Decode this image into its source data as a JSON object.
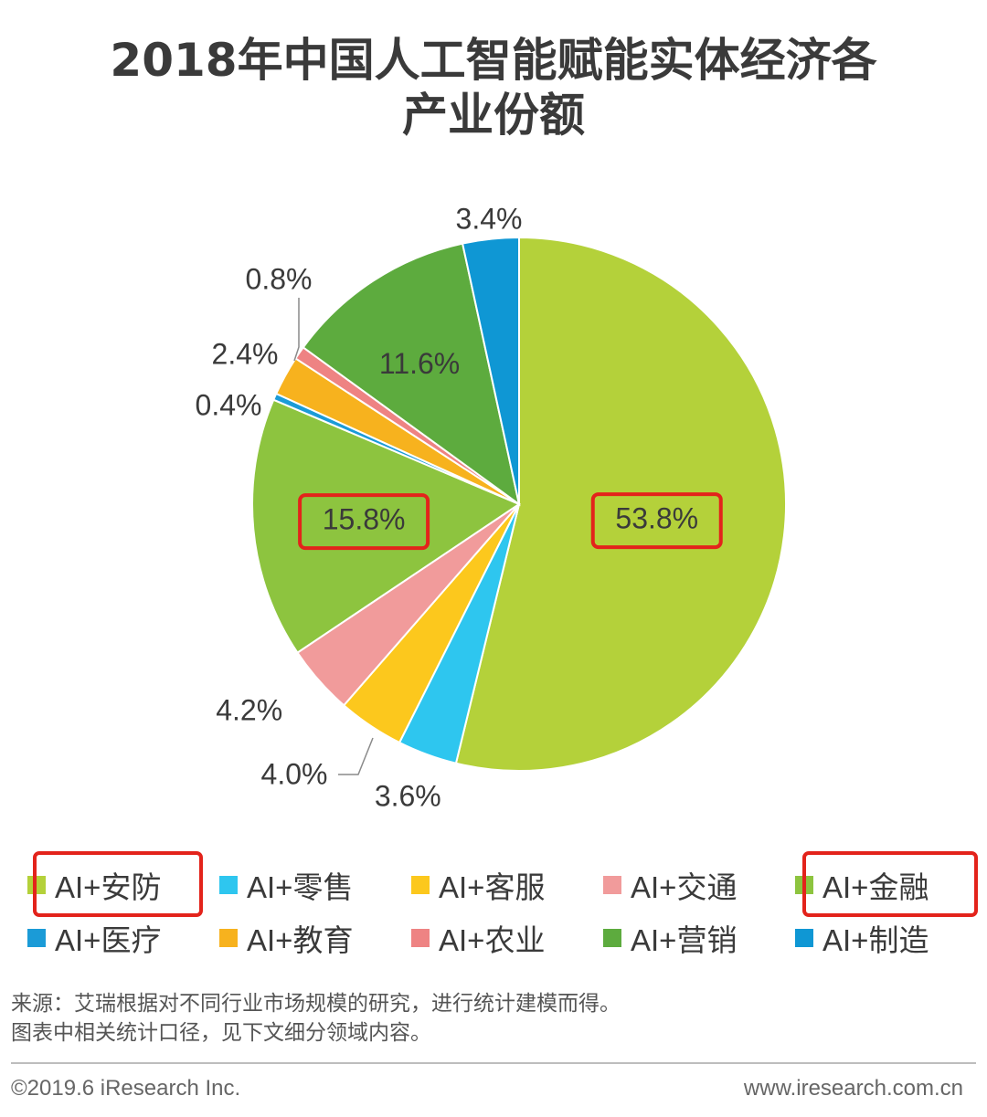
{
  "title_line1": "2018年中国人工智能赋能实体经济各",
  "title_line2": "产业份额",
  "chart_data": {
    "type": "pie",
    "title": "2018年中国人工智能赋能实体经济各产业份额",
    "slices": [
      {
        "label": "AI+安防",
        "value": 53.8,
        "display": "53.8%",
        "color": "#b4d13a"
      },
      {
        "label": "AI+零售",
        "value": 3.6,
        "display": "3.6%",
        "color": "#2ec6ef"
      },
      {
        "label": "AI+客服",
        "value": 4.0,
        "display": "4.0%",
        "color": "#fcc81d"
      },
      {
        "label": "AI+交通",
        "value": 4.2,
        "display": "4.2%",
        "color": "#f19b9b"
      },
      {
        "label": "AI+金融",
        "value": 15.8,
        "display": "15.8%",
        "color": "#8dc43f"
      },
      {
        "label": "AI+医疗",
        "value": 0.4,
        "display": "0.4%",
        "color": "#1b9bd7"
      },
      {
        "label": "AI+教育",
        "value": 2.4,
        "display": "2.4%",
        "color": "#f7b21e"
      },
      {
        "label": "AI+农业",
        "value": 0.8,
        "display": "0.8%",
        "color": "#ee8383"
      },
      {
        "label": "AI+营销",
        "value": 11.6,
        "display": "11.6%",
        "color": "#5dab3e"
      },
      {
        "label": "AI+制造",
        "value": 3.4,
        "display": "3.4%",
        "color": "#0f97d4"
      }
    ],
    "legend_placement": "bottom"
  },
  "footnote_line1": "来源：艾瑞根据对不同行业市场规模的研究，进行统计建模而得。",
  "footnote_line2": "图表中相关统计口径，见下文细分领域内容。",
  "copyright": "©2019.6 iResearch Inc.",
  "website": "www.iresearch.com.cn",
  "highlight_color": "#e3231b"
}
